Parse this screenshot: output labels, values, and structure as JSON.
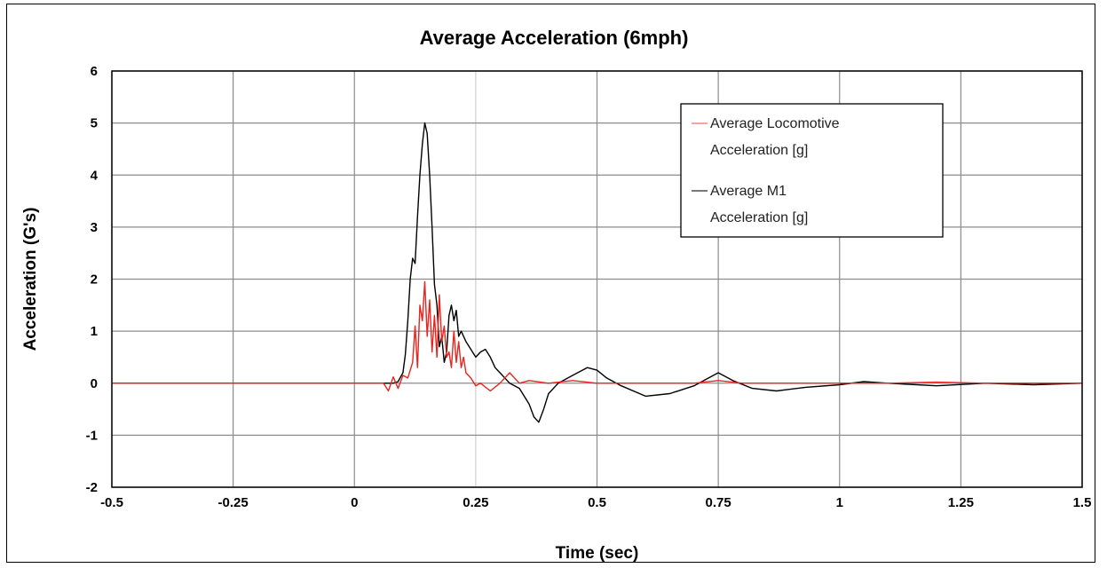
{
  "chart_data": {
    "type": "line",
    "title": "Average Acceleration (6mph)",
    "xlabel": "Time (sec)",
    "ylabel": "Acceleration (G's)",
    "xlim": [
      -0.5,
      1.5
    ],
    "ylim": [
      -2,
      6
    ],
    "xticks": [
      -0.5,
      -0.25,
      0,
      0.25,
      0.5,
      0.75,
      1,
      1.25,
      1.5
    ],
    "xtick_labels": [
      "-0.5",
      "-0.25",
      "0",
      "0.25",
      "0.5",
      "0.75",
      "1",
      "1.25",
      "1.5"
    ],
    "yticks": [
      -2,
      -1,
      0,
      1,
      2,
      3,
      4,
      5,
      6
    ],
    "ytick_labels": [
      "-2",
      "-1",
      "0",
      "1",
      "2",
      "3",
      "4",
      "5",
      "6"
    ],
    "grid": true,
    "legend_position": "top-right",
    "series": [
      {
        "name": "Average Locomotive Acceleration [g]",
        "legend_lines": [
          "Average Locomotive",
          "Acceleration [g]"
        ],
        "color": "#e8241f",
        "x": [
          -0.5,
          -0.4,
          -0.3,
          -0.2,
          -0.1,
          0.0,
          0.06,
          0.07,
          0.08,
          0.09,
          0.1,
          0.11,
          0.12,
          0.125,
          0.13,
          0.135,
          0.14,
          0.145,
          0.15,
          0.155,
          0.16,
          0.165,
          0.17,
          0.175,
          0.18,
          0.185,
          0.19,
          0.195,
          0.2,
          0.205,
          0.21,
          0.215,
          0.22,
          0.225,
          0.23,
          0.24,
          0.25,
          0.26,
          0.28,
          0.3,
          0.32,
          0.34,
          0.36,
          0.4,
          0.45,
          0.5,
          0.55,
          0.6,
          0.7,
          0.75,
          0.8,
          0.9,
          1.0,
          1.1,
          1.2,
          1.3,
          1.4,
          1.5
        ],
        "y": [
          0.0,
          0.0,
          0.0,
          0.0,
          0.0,
          0.0,
          0.0,
          -0.15,
          0.12,
          -0.1,
          0.15,
          0.1,
          0.4,
          1.1,
          0.3,
          1.5,
          1.2,
          1.95,
          0.9,
          1.6,
          0.6,
          1.3,
          0.5,
          1.7,
          0.8,
          1.1,
          0.5,
          0.6,
          0.3,
          1.0,
          0.4,
          0.8,
          0.3,
          0.5,
          0.2,
          0.1,
          -0.05,
          0.0,
          -0.15,
          0.0,
          0.2,
          0.0,
          0.05,
          0.0,
          0.05,
          0.0,
          0.0,
          0.0,
          0.0,
          0.05,
          0.0,
          0.0,
          0.0,
          0.0,
          0.02,
          0.0,
          0.0,
          0.0
        ]
      },
      {
        "name": "Average M1 Acceleration [g]",
        "legend_lines": [
          "Average M1",
          "Acceleration [g]"
        ],
        "color": "#000000",
        "x": [
          -0.5,
          -0.4,
          -0.3,
          -0.2,
          -0.1,
          0.0,
          0.08,
          0.09,
          0.1,
          0.105,
          0.11,
          0.115,
          0.12,
          0.125,
          0.13,
          0.135,
          0.14,
          0.145,
          0.15,
          0.155,
          0.16,
          0.165,
          0.17,
          0.175,
          0.18,
          0.185,
          0.19,
          0.195,
          0.2,
          0.205,
          0.21,
          0.215,
          0.22,
          0.23,
          0.24,
          0.25,
          0.26,
          0.27,
          0.28,
          0.29,
          0.3,
          0.32,
          0.34,
          0.36,
          0.37,
          0.38,
          0.39,
          0.4,
          0.42,
          0.44,
          0.46,
          0.48,
          0.5,
          0.52,
          0.55,
          0.6,
          0.65,
          0.7,
          0.73,
          0.75,
          0.78,
          0.82,
          0.87,
          0.93,
          1.0,
          1.05,
          1.1,
          1.2,
          1.3,
          1.4,
          1.5
        ],
        "y": [
          0.0,
          0.0,
          0.0,
          0.0,
          0.0,
          0.0,
          0.0,
          0.03,
          0.2,
          0.55,
          1.2,
          2.0,
          2.4,
          2.3,
          3.2,
          4.0,
          4.6,
          5.0,
          4.8,
          4.0,
          3.0,
          1.9,
          1.5,
          0.7,
          0.9,
          0.4,
          0.6,
          1.3,
          1.5,
          1.2,
          1.4,
          0.9,
          1.0,
          0.8,
          0.65,
          0.5,
          0.6,
          0.65,
          0.5,
          0.3,
          0.2,
          0.0,
          -0.1,
          -0.4,
          -0.65,
          -0.75,
          -0.5,
          -0.2,
          0.0,
          0.1,
          0.2,
          0.3,
          0.25,
          0.1,
          -0.05,
          -0.25,
          -0.2,
          -0.05,
          0.1,
          0.2,
          0.05,
          -0.1,
          -0.15,
          -0.08,
          -0.03,
          0.03,
          0.0,
          -0.05,
          0.0,
          -0.03,
          0.0
        ]
      }
    ]
  }
}
